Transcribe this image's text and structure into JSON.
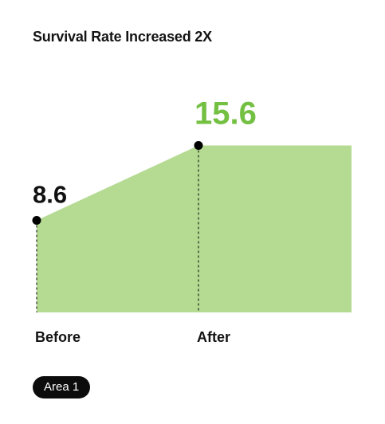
{
  "chart_data": {
    "type": "area",
    "title": "Survival Rate Increased 2X",
    "categories": [
      "Before",
      "After"
    ],
    "series": [
      {
        "name": "Area 1",
        "values": [
          8.6,
          15.6
        ]
      }
    ],
    "data_labels": [
      "8.6",
      "15.6"
    ],
    "colors": {
      "area_fill": "#b5db93",
      "highlight_label": "#74c043",
      "label": "#111111",
      "marker": "#000000",
      "legend_bg": "#0c0c0c",
      "legend_text": "#ffffff"
    },
    "legend": {
      "label": "Area 1",
      "position": "bottom-left"
    },
    "grid": false
  }
}
